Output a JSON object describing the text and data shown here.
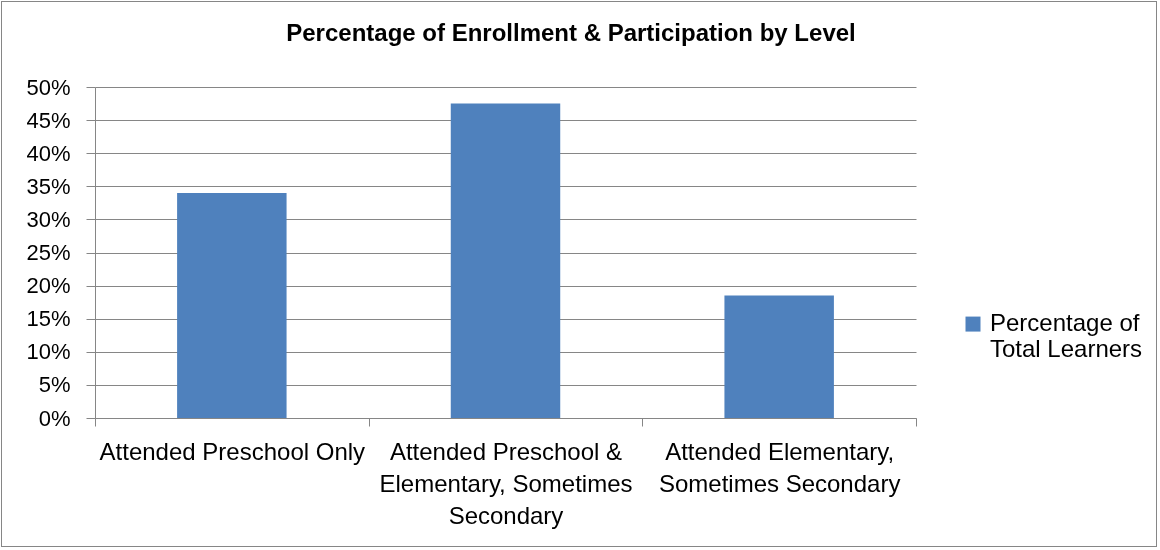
{
  "chart_data": {
    "type": "bar",
    "title": "Percentage of Enrollment & Participation by Level",
    "categories": [
      "Attended Preschool Only",
      "Attended Preschool & Elementary, Sometimes Secondary",
      "Attended Elementary, Sometimes Secondary"
    ],
    "series": [
      {
        "name": "Percentage of Total Learners",
        "color": "#4f81bd",
        "values": [
          34,
          47.5,
          18.5
        ]
      }
    ],
    "ylim": [
      0,
      50
    ],
    "yticks": [
      {
        "value": 0,
        "label": "0%"
      },
      {
        "value": 5,
        "label": "5%"
      },
      {
        "value": 10,
        "label": "10%"
      },
      {
        "value": 15,
        "label": "15%"
      },
      {
        "value": 20,
        "label": "20%"
      },
      {
        "value": 25,
        "label": "25%"
      },
      {
        "value": 30,
        "label": "30%"
      },
      {
        "value": 35,
        "label": "35%"
      },
      {
        "value": 40,
        "label": "40%"
      },
      {
        "value": 45,
        "label": "45%"
      },
      {
        "value": 50,
        "label": "50%"
      }
    ],
    "grid": "y",
    "legend": "right"
  }
}
